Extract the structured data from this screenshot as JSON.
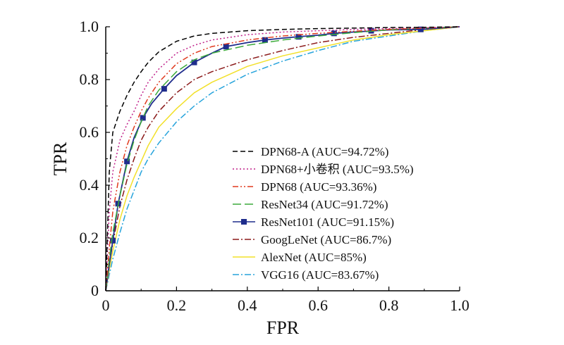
{
  "chart_data": {
    "type": "line",
    "title": "",
    "xlabel": "FPR",
    "ylabel": "TPR",
    "xlim": [
      0,
      1.0
    ],
    "ylim": [
      0,
      1.0
    ],
    "x_ticks": [
      "0",
      "0.2",
      "0.4",
      "0.6",
      "0.8",
      "1.0"
    ],
    "y_ticks": [
      "0",
      "0.2",
      "0.4",
      "0.6",
      "0.8",
      "1.0"
    ],
    "grid": false,
    "legend_position": "right-center",
    "series": [
      {
        "name": "DPN68-A (AUC=94.72%)",
        "color": "#000000",
        "dash": "dashed",
        "x": [
          0,
          0.01,
          0.02,
          0.04,
          0.06,
          0.08,
          0.1,
          0.12,
          0.15,
          0.2,
          0.25,
          0.3,
          0.4,
          0.5,
          0.6,
          0.7,
          0.8,
          0.9,
          1.0
        ],
        "y": [
          0,
          0.45,
          0.6,
          0.68,
          0.74,
          0.79,
          0.83,
          0.865,
          0.905,
          0.945,
          0.965,
          0.975,
          0.985,
          0.99,
          0.993,
          0.995,
          0.997,
          0.998,
          1.0
        ]
      },
      {
        "name": "DPN68+小卷积 (AUC=93.5%)",
        "color": "#c0208a",
        "dash": "dotted",
        "x": [
          0,
          0.01,
          0.02,
          0.04,
          0.06,
          0.08,
          0.1,
          0.12,
          0.15,
          0.2,
          0.25,
          0.3,
          0.4,
          0.5,
          0.6,
          0.7,
          0.8,
          0.9,
          1.0
        ],
        "y": [
          0,
          0.3,
          0.45,
          0.57,
          0.63,
          0.68,
          0.74,
          0.79,
          0.84,
          0.9,
          0.93,
          0.95,
          0.97,
          0.98,
          0.985,
          0.99,
          0.993,
          0.996,
          1.0
        ]
      },
      {
        "name": "DPN68 (AUC=93.36%)",
        "color": "#e03a1e",
        "dash": "dash-dot-dot",
        "x": [
          0,
          0.01,
          0.02,
          0.04,
          0.06,
          0.08,
          0.1,
          0.12,
          0.15,
          0.2,
          0.25,
          0.3,
          0.4,
          0.5,
          0.6,
          0.7,
          0.8,
          0.9,
          1.0
        ],
        "y": [
          0,
          0.16,
          0.3,
          0.45,
          0.55,
          0.62,
          0.68,
          0.73,
          0.79,
          0.86,
          0.9,
          0.925,
          0.95,
          0.965,
          0.975,
          0.983,
          0.99,
          0.995,
          1.0
        ]
      },
      {
        "name": "ResNet34 (AUC=91.72%)",
        "color": "#3caa3c",
        "dash": "long-dash",
        "x": [
          0,
          0.01,
          0.02,
          0.04,
          0.06,
          0.08,
          0.1,
          0.12,
          0.15,
          0.2,
          0.25,
          0.3,
          0.4,
          0.5,
          0.6,
          0.7,
          0.8,
          0.9,
          1.0
        ],
        "y": [
          0,
          0.12,
          0.22,
          0.36,
          0.48,
          0.57,
          0.64,
          0.7,
          0.76,
          0.83,
          0.875,
          0.9,
          0.93,
          0.95,
          0.965,
          0.978,
          0.988,
          0.995,
          1.0
        ]
      },
      {
        "name": "ResNet101 (AUC=91.15%)",
        "color": "#1f2d8c",
        "dash": "solid",
        "markers": true,
        "x": [
          0,
          0.01,
          0.02,
          0.035,
          0.06,
          0.08,
          0.105,
          0.13,
          0.165,
          0.2,
          0.25,
          0.3,
          0.34,
          0.4,
          0.45,
          0.5,
          0.55,
          0.6,
          0.645,
          0.7,
          0.8,
          0.89,
          1.0
        ],
        "y": [
          0,
          0.1,
          0.19,
          0.33,
          0.49,
          0.58,
          0.655,
          0.71,
          0.765,
          0.815,
          0.865,
          0.9,
          0.925,
          0.94,
          0.95,
          0.957,
          0.963,
          0.968,
          0.975,
          0.98,
          0.988,
          0.99,
          1.0
        ],
        "marker_x": [
          0.02,
          0.035,
          0.06,
          0.105,
          0.165,
          0.25,
          0.34,
          0.45,
          0.545,
          0.645,
          0.75,
          0.89
        ],
        "marker_y": [
          0.19,
          0.33,
          0.49,
          0.655,
          0.765,
          0.865,
          0.925,
          0.95,
          0.962,
          0.975,
          0.985,
          0.99
        ]
      },
      {
        "name": "GoogLeNet (AUC=86.7%)",
        "color": "#8b1a1a",
        "dash": "dash-dot",
        "x": [
          0,
          0.01,
          0.02,
          0.04,
          0.06,
          0.08,
          0.1,
          0.12,
          0.15,
          0.2,
          0.25,
          0.3,
          0.4,
          0.5,
          0.6,
          0.7,
          0.8,
          0.9,
          1.0
        ],
        "y": [
          0,
          0.1,
          0.18,
          0.32,
          0.42,
          0.5,
          0.57,
          0.62,
          0.68,
          0.75,
          0.8,
          0.83,
          0.875,
          0.91,
          0.94,
          0.96,
          0.975,
          0.99,
          1.0
        ]
      },
      {
        "name": "AlexNet (AUC=85%)",
        "color": "#f2e02a",
        "dash": "solid",
        "x": [
          0,
          0.01,
          0.02,
          0.04,
          0.06,
          0.08,
          0.1,
          0.12,
          0.15,
          0.2,
          0.25,
          0.3,
          0.4,
          0.5,
          0.6,
          0.7,
          0.8,
          0.9,
          1.0
        ],
        "y": [
          0,
          0.08,
          0.15,
          0.27,
          0.36,
          0.43,
          0.49,
          0.55,
          0.62,
          0.69,
          0.75,
          0.79,
          0.85,
          0.89,
          0.92,
          0.95,
          0.97,
          0.985,
          1.0
        ]
      },
      {
        "name": "VGG16 (AUC=83.67%)",
        "color": "#27a4dc",
        "dash": "dash-dot",
        "x": [
          0,
          0.01,
          0.02,
          0.04,
          0.06,
          0.08,
          0.1,
          0.12,
          0.15,
          0.2,
          0.25,
          0.3,
          0.4,
          0.5,
          0.6,
          0.7,
          0.8,
          0.9,
          1.0
        ],
        "y": [
          0,
          0.06,
          0.12,
          0.22,
          0.31,
          0.38,
          0.45,
          0.5,
          0.56,
          0.64,
          0.7,
          0.75,
          0.82,
          0.87,
          0.91,
          0.945,
          0.965,
          0.985,
          1.0
        ]
      }
    ]
  }
}
